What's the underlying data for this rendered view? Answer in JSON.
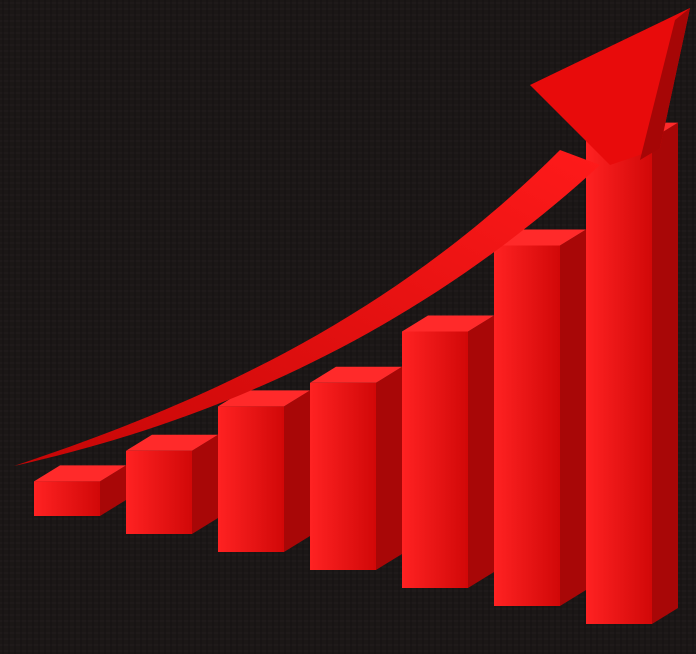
{
  "colors": {
    "background": "#1b1716",
    "bar_front": "#e30d0d",
    "bar_side": "#a80707",
    "bar_top": "#ff2a2a",
    "arrow": "#e50b0b"
  },
  "chart_data": {
    "type": "bar",
    "style": "3d",
    "title": "",
    "xlabel": "",
    "ylabel": "",
    "grid": false,
    "legend": "none",
    "categories": [
      "",
      "",
      "",
      "",
      "",
      "",
      ""
    ],
    "values": [
      5,
      12,
      21,
      27,
      37,
      52,
      70
    ],
    "ylim": [
      0,
      75
    ],
    "trend_arrow": true
  }
}
